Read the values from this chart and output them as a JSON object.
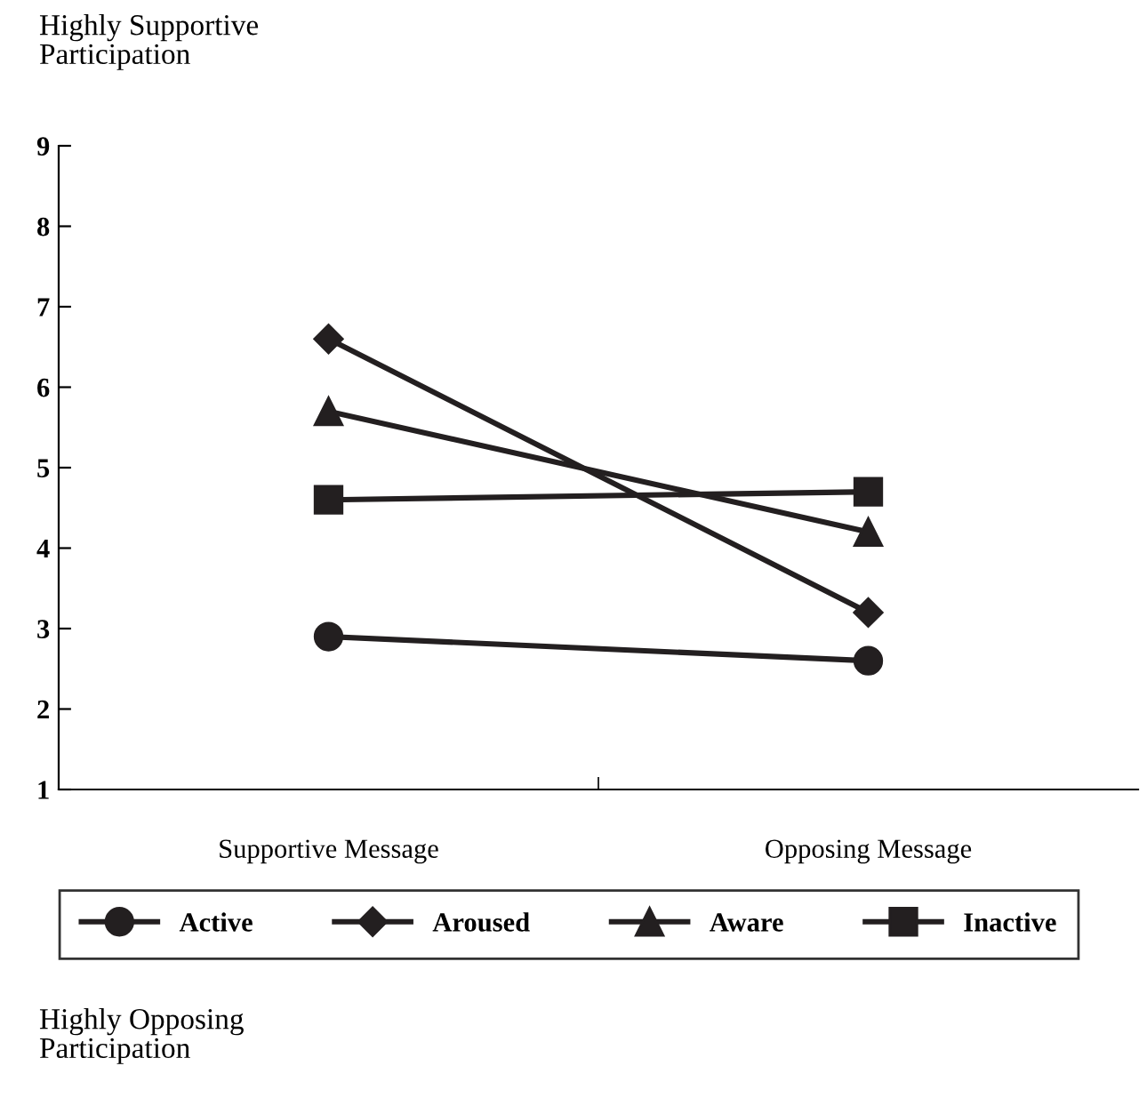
{
  "chart_data": {
    "type": "line",
    "categories": [
      "Supportive Message",
      "Opposing Message"
    ],
    "series": [
      {
        "name": "Active",
        "color": "#231f20",
        "marker": "circle",
        "values": [
          2.9,
          2.6
        ]
      },
      {
        "name": "Aroused",
        "color": "#231f20",
        "marker": "diamond",
        "values": [
          6.6,
          3.2
        ]
      },
      {
        "name": "Aware",
        "color": "#231f20",
        "marker": "triangle",
        "values": [
          5.7,
          4.2
        ]
      },
      {
        "name": "Inactive",
        "color": "#231f20",
        "marker": "square",
        "values": [
          4.6,
          4.7
        ]
      }
    ],
    "ylim": [
      1,
      9
    ],
    "yticks": [
      1,
      2,
      3,
      4,
      5,
      6,
      7,
      8,
      9
    ],
    "grid": false,
    "legend": "bottom",
    "line_style": "solid",
    "annotations": [
      "Highly Supportive\nParticipation",
      "Highly Opposing\nParticipation"
    ]
  }
}
